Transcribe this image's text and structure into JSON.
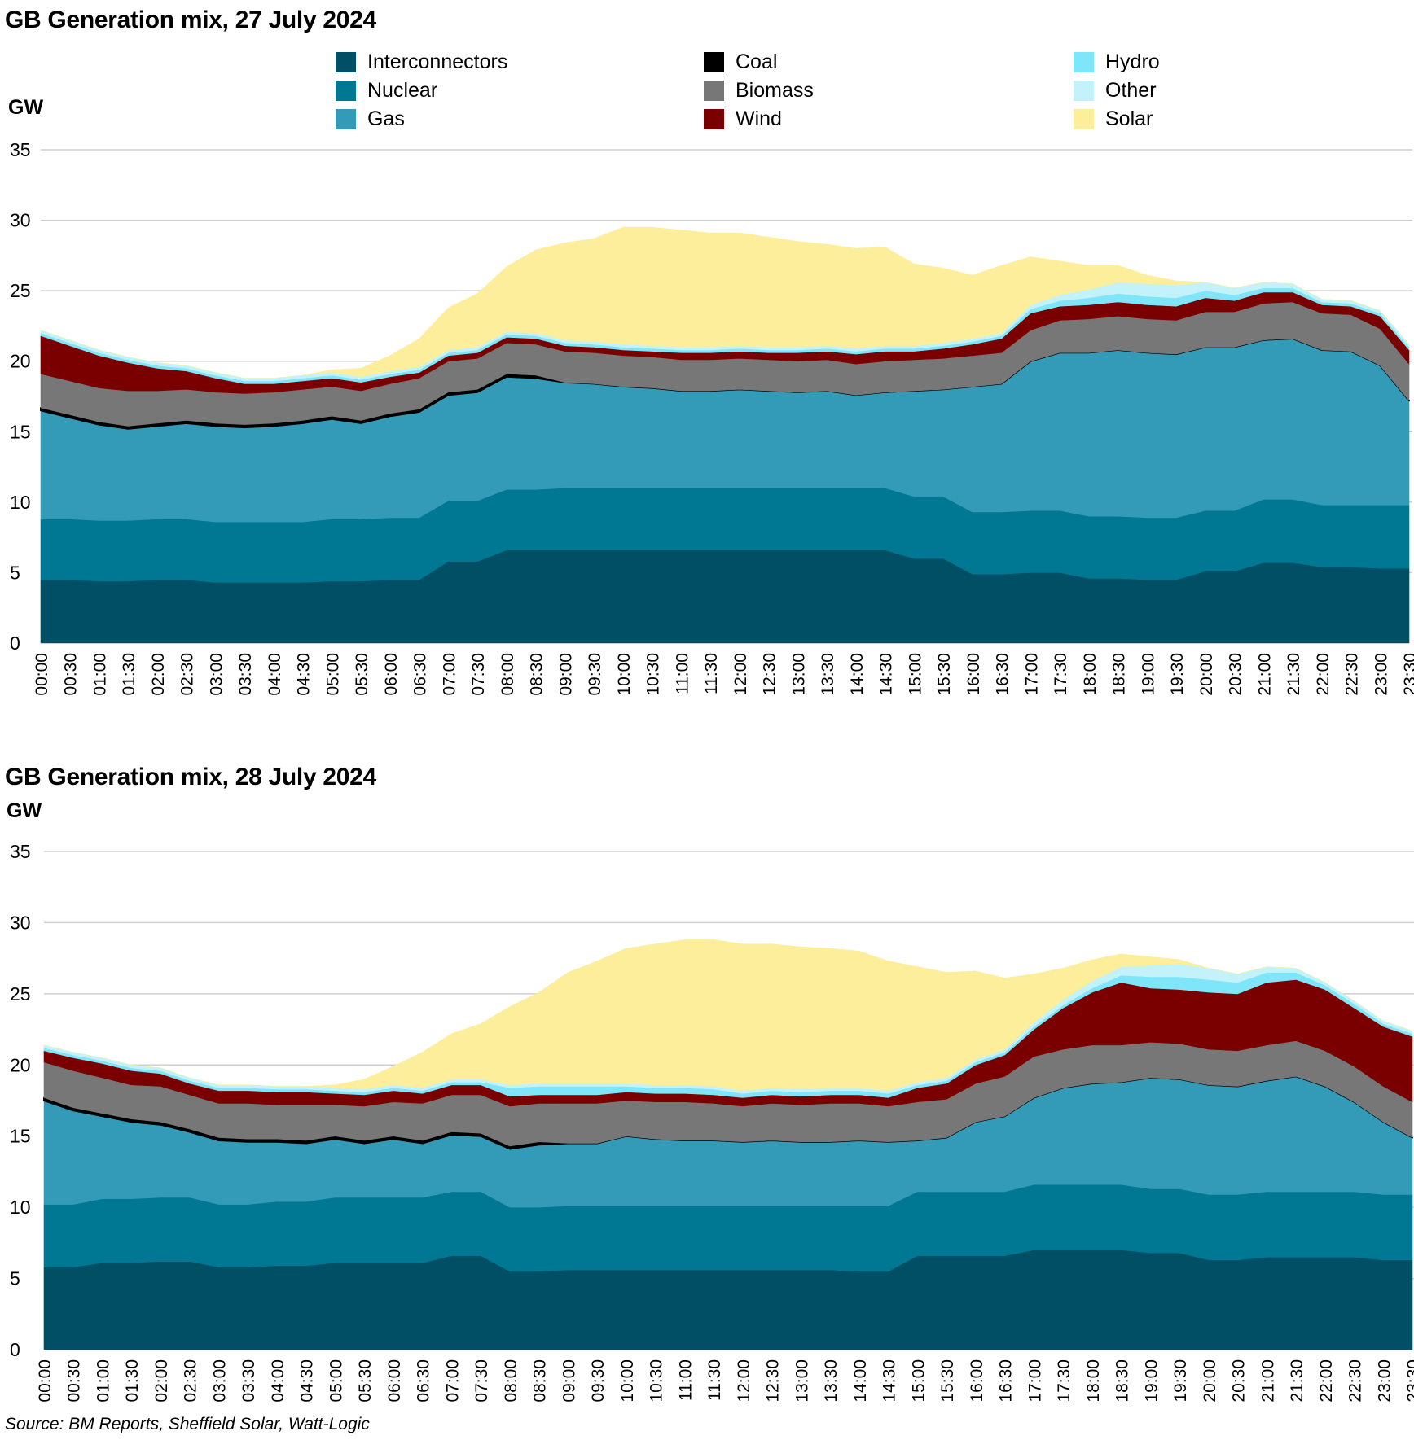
{
  "source": "Source: BM Reports, Sheffield Solar, Watt-Logic",
  "legend": [
    {
      "label": "Interconnectors",
      "color": "#004f64"
    },
    {
      "label": "Nuclear",
      "color": "#007793"
    },
    {
      "label": "Gas",
      "color": "#339bb8"
    },
    {
      "label": "Coal",
      "color": "#000000"
    },
    {
      "label": "Biomass",
      "color": "#777777"
    },
    {
      "label": "Wind",
      "color": "#7a0000"
    },
    {
      "label": "Hydro",
      "color": "#7fe5f8"
    },
    {
      "label": "Other",
      "color": "#c4f2fb"
    },
    {
      "label": "Solar",
      "color": "#fcee9a"
    }
  ],
  "chart_data": [
    {
      "type": "area",
      "stacked": true,
      "title": "GB Generation mix, 27 July 2024",
      "ylabel": "GW",
      "ylim": [
        0,
        35
      ],
      "yticks": [
        0,
        5,
        10,
        15,
        20,
        25,
        30,
        35
      ],
      "grid": true,
      "legend_position": "top",
      "categories": [
        "00:00",
        "00:30",
        "01:00",
        "01:30",
        "02:00",
        "02:30",
        "03:00",
        "03:30",
        "04:00",
        "04:30",
        "05:00",
        "05:30",
        "06:00",
        "06:30",
        "07:00",
        "07:30",
        "08:00",
        "08:30",
        "09:00",
        "09:30",
        "10:00",
        "10:30",
        "11:00",
        "11:30",
        "12:00",
        "12:30",
        "13:00",
        "13:30",
        "14:00",
        "14:30",
        "15:00",
        "15:30",
        "16:00",
        "16:30",
        "17:00",
        "17:30",
        "18:00",
        "18:30",
        "19:00",
        "19:30",
        "20:00",
        "20:30",
        "21:00",
        "21:30",
        "22:00",
        "22:30",
        "23:00",
        "23:30"
      ],
      "series": [
        {
          "name": "Interconnectors",
          "values": [
            4.5,
            4.5,
            4.4,
            4.4,
            4.5,
            4.5,
            4.3,
            4.3,
            4.3,
            4.3,
            4.4,
            4.4,
            4.5,
            4.5,
            5.8,
            5.8,
            6.6,
            6.6,
            6.6,
            6.6,
            6.6,
            6.6,
            6.6,
            6.6,
            6.6,
            6.6,
            6.6,
            6.6,
            6.6,
            6.6,
            6.0,
            6.0,
            4.9,
            4.9,
            5.0,
            5.0,
            4.6,
            4.6,
            4.5,
            4.5,
            5.1,
            5.1,
            5.7,
            5.7,
            5.4,
            5.4,
            5.3,
            5.3
          ]
        },
        {
          "name": "Nuclear",
          "values": [
            4.3,
            4.3,
            4.3,
            4.3,
            4.3,
            4.3,
            4.3,
            4.3,
            4.3,
            4.3,
            4.4,
            4.4,
            4.4,
            4.4,
            4.3,
            4.3,
            4.3,
            4.3,
            4.4,
            4.4,
            4.4,
            4.4,
            4.4,
            4.4,
            4.4,
            4.4,
            4.4,
            4.4,
            4.4,
            4.4,
            4.4,
            4.4,
            4.4,
            4.4,
            4.4,
            4.4,
            4.4,
            4.4,
            4.4,
            4.4,
            4.3,
            4.3,
            4.5,
            4.5,
            4.4,
            4.4,
            4.5,
            4.5
          ]
        },
        {
          "name": "Gas",
          "values": [
            7.7,
            7.2,
            6.8,
            6.5,
            6.6,
            6.8,
            6.8,
            6.7,
            6.8,
            7.0,
            7.1,
            6.8,
            7.2,
            7.5,
            7.5,
            7.7,
            8.0,
            7.9,
            7.5,
            7.4,
            7.2,
            7.1,
            6.9,
            6.9,
            7.0,
            6.9,
            6.8,
            6.9,
            6.6,
            6.8,
            7.5,
            7.6,
            8.9,
            9.1,
            10.6,
            11.2,
            11.6,
            11.8,
            11.7,
            11.6,
            11.6,
            11.6,
            11.3,
            11.4,
            11.0,
            10.9,
            9.9,
            7.4
          ]
        },
        {
          "name": "Coal",
          "values": [
            0.2,
            0.2,
            0.2,
            0.2,
            0.2,
            0.2,
            0.2,
            0.2,
            0.2,
            0.2,
            0.2,
            0.2,
            0.2,
            0.2,
            0.2,
            0.2,
            0.2,
            0.2,
            0.0,
            0.0,
            0.0,
            0.0,
            0.0,
            0.0,
            0.0,
            0.0,
            0.0,
            0.0,
            0.0,
            0.0,
            0.0,
            0.0,
            0.0,
            0.0,
            0.0,
            0.0,
            0.0,
            0.0,
            0.0,
            0.0,
            0.0,
            0.0,
            0.0,
            0.0,
            0.0,
            0.0,
            0.0,
            0.0
          ]
        },
        {
          "name": "Biomass",
          "values": [
            2.4,
            2.4,
            2.4,
            2.5,
            2.3,
            2.2,
            2.2,
            2.2,
            2.2,
            2.2,
            2.1,
            2.1,
            2.1,
            2.2,
            2.2,
            2.2,
            2.2,
            2.2,
            2.2,
            2.2,
            2.2,
            2.2,
            2.2,
            2.2,
            2.2,
            2.2,
            2.2,
            2.2,
            2.2,
            2.2,
            2.2,
            2.2,
            2.2,
            2.2,
            2.2,
            2.3,
            2.4,
            2.4,
            2.4,
            2.4,
            2.5,
            2.5,
            2.6,
            2.6,
            2.6,
            2.6,
            2.6,
            2.6
          ]
        },
        {
          "name": "Wind",
          "values": [
            2.7,
            2.5,
            2.3,
            2.0,
            1.6,
            1.3,
            1.0,
            0.7,
            0.6,
            0.6,
            0.6,
            0.6,
            0.5,
            0.4,
            0.4,
            0.4,
            0.4,
            0.4,
            0.4,
            0.4,
            0.4,
            0.4,
            0.5,
            0.5,
            0.5,
            0.5,
            0.6,
            0.6,
            0.7,
            0.7,
            0.6,
            0.7,
            0.8,
            1.0,
            1.2,
            1.0,
            1.0,
            1.0,
            1.0,
            1.0,
            1.0,
            0.8,
            0.8,
            0.7,
            0.6,
            0.6,
            0.9,
            1.0
          ]
        },
        {
          "name": "Hydro",
          "values": [
            0.2,
            0.2,
            0.2,
            0.2,
            0.2,
            0.2,
            0.2,
            0.2,
            0.2,
            0.2,
            0.2,
            0.2,
            0.2,
            0.2,
            0.2,
            0.2,
            0.2,
            0.2,
            0.2,
            0.2,
            0.2,
            0.2,
            0.2,
            0.2,
            0.2,
            0.2,
            0.2,
            0.2,
            0.2,
            0.2,
            0.2,
            0.2,
            0.2,
            0.2,
            0.3,
            0.4,
            0.5,
            0.6,
            0.6,
            0.6,
            0.5,
            0.4,
            0.3,
            0.3,
            0.2,
            0.2,
            0.2,
            0.2
          ]
        },
        {
          "name": "Other",
          "values": [
            0.2,
            0.2,
            0.2,
            0.2,
            0.2,
            0.2,
            0.2,
            0.2,
            0.2,
            0.2,
            0.2,
            0.2,
            0.2,
            0.2,
            0.2,
            0.2,
            0.2,
            0.2,
            0.2,
            0.2,
            0.2,
            0.2,
            0.2,
            0.2,
            0.2,
            0.2,
            0.2,
            0.2,
            0.2,
            0.2,
            0.2,
            0.2,
            0.2,
            0.2,
            0.3,
            0.4,
            0.6,
            0.8,
            0.9,
            0.9,
            0.6,
            0.5,
            0.4,
            0.3,
            0.2,
            0.2,
            0.2,
            0.2
          ]
        },
        {
          "name": "Solar",
          "values": [
            0.0,
            0.0,
            0.0,
            0.0,
            0.0,
            0.0,
            0.0,
            0.0,
            0.0,
            0.0,
            0.2,
            0.6,
            1.1,
            2.0,
            3.0,
            3.8,
            4.6,
            5.9,
            6.9,
            7.3,
            8.3,
            8.4,
            8.3,
            8.1,
            8.0,
            7.8,
            7.5,
            7.2,
            7.1,
            7.0,
            5.8,
            5.3,
            4.5,
            4.8,
            3.4,
            2.4,
            1.7,
            1.2,
            0.6,
            0.3,
            0.0,
            0.0,
            0.0,
            0.0,
            0.0,
            0.0,
            0.0,
            0.0
          ]
        }
      ]
    },
    {
      "type": "area",
      "stacked": true,
      "title": "GB Generation mix, 28 July 2024",
      "ylabel": "GW",
      "ylim": [
        0,
        35
      ],
      "yticks": [
        0,
        5,
        10,
        15,
        20,
        25,
        30,
        35
      ],
      "grid": true,
      "categories": [
        "00:00",
        "00:30",
        "01:00",
        "01:30",
        "02:00",
        "02:30",
        "03:00",
        "03:30",
        "04:00",
        "04:30",
        "05:00",
        "05:30",
        "06:00",
        "06:30",
        "07:00",
        "07:30",
        "08:00",
        "08:30",
        "09:00",
        "09:30",
        "10:00",
        "10:30",
        "11:00",
        "11:30",
        "12:00",
        "12:30",
        "13:00",
        "13:30",
        "14:00",
        "14:30",
        "15:00",
        "15:30",
        "16:00",
        "16:30",
        "17:00",
        "17:30",
        "18:00",
        "18:30",
        "19:00",
        "19:30",
        "20:00",
        "20:30",
        "21:00",
        "21:30",
        "22:00",
        "22:30",
        "23:00",
        "23:30"
      ],
      "series": [
        {
          "name": "Interconnectors",
          "values": [
            5.8,
            5.8,
            6.1,
            6.1,
            6.2,
            6.2,
            5.8,
            5.8,
            5.9,
            5.9,
            6.1,
            6.1,
            6.1,
            6.1,
            6.6,
            6.6,
            5.5,
            5.5,
            5.6,
            5.6,
            5.6,
            5.6,
            5.6,
            5.6,
            5.6,
            5.6,
            5.6,
            5.6,
            5.5,
            5.5,
            6.6,
            6.6,
            6.6,
            6.6,
            7.0,
            7.0,
            7.0,
            7.0,
            6.8,
            6.8,
            6.3,
            6.3,
            6.5,
            6.5,
            6.5,
            6.5,
            6.3,
            6.3
          ]
        },
        {
          "name": "Nuclear",
          "values": [
            4.4,
            4.4,
            4.5,
            4.5,
            4.5,
            4.5,
            4.4,
            4.4,
            4.5,
            4.5,
            4.6,
            4.6,
            4.6,
            4.6,
            4.5,
            4.5,
            4.5,
            4.5,
            4.5,
            4.5,
            4.5,
            4.5,
            4.5,
            4.5,
            4.5,
            4.5,
            4.5,
            4.5,
            4.6,
            4.6,
            4.5,
            4.5,
            4.5,
            4.5,
            4.6,
            4.6,
            4.6,
            4.6,
            4.5,
            4.5,
            4.6,
            4.6,
            4.6,
            4.6,
            4.6,
            4.6,
            4.6,
            4.6
          ]
        },
        {
          "name": "Gas",
          "values": [
            7.3,
            6.6,
            5.8,
            5.4,
            5.1,
            4.6,
            4.5,
            4.4,
            4.2,
            4.1,
            4.1,
            3.8,
            4.1,
            3.8,
            4.0,
            3.9,
            4.1,
            4.4,
            4.4,
            4.4,
            4.9,
            4.7,
            4.6,
            4.6,
            4.5,
            4.6,
            4.5,
            4.5,
            4.6,
            4.5,
            3.6,
            3.8,
            4.9,
            5.3,
            6.1,
            6.8,
            7.1,
            7.2,
            7.8,
            7.7,
            7.7,
            7.6,
            7.8,
            8.1,
            7.4,
            6.3,
            5.1,
            4.0
          ]
        },
        {
          "name": "Coal",
          "values": [
            0.2,
            0.2,
            0.2,
            0.2,
            0.2,
            0.2,
            0.2,
            0.2,
            0.2,
            0.2,
            0.2,
            0.2,
            0.2,
            0.2,
            0.2,
            0.2,
            0.2,
            0.2,
            0.0,
            0.0,
            0.0,
            0.0,
            0.0,
            0.0,
            0.0,
            0.0,
            0.0,
            0.0,
            0.0,
            0.0,
            0.0,
            0.0,
            0.0,
            0.0,
            0.0,
            0.0,
            0.0,
            0.0,
            0.0,
            0.0,
            0.0,
            0.0,
            0.0,
            0.0,
            0.0,
            0.0,
            0.0,
            0.0
          ]
        },
        {
          "name": "Biomass",
          "values": [
            2.5,
            2.6,
            2.5,
            2.4,
            2.5,
            2.4,
            2.4,
            2.5,
            2.4,
            2.5,
            2.2,
            2.4,
            2.4,
            2.6,
            2.6,
            2.7,
            2.8,
            2.7,
            2.8,
            2.8,
            2.5,
            2.6,
            2.7,
            2.6,
            2.5,
            2.6,
            2.6,
            2.7,
            2.6,
            2.5,
            2.7,
            2.7,
            2.7,
            2.8,
            2.9,
            2.7,
            2.7,
            2.6,
            2.5,
            2.5,
            2.5,
            2.5,
            2.5,
            2.5,
            2.5,
            2.5,
            2.5,
            2.5
          ]
        },
        {
          "name": "Wind",
          "values": [
            0.8,
            0.9,
            1.0,
            1.0,
            0.9,
            0.8,
            0.9,
            0.9,
            0.9,
            0.9,
            0.8,
            0.8,
            0.8,
            0.7,
            0.7,
            0.7,
            0.7,
            0.6,
            0.6,
            0.6,
            0.6,
            0.6,
            0.6,
            0.6,
            0.6,
            0.6,
            0.6,
            0.6,
            0.6,
            0.6,
            1.0,
            1.1,
            1.3,
            1.5,
            1.9,
            2.9,
            3.7,
            4.4,
            3.8,
            3.8,
            4.0,
            4.0,
            4.4,
            4.3,
            4.3,
            4.1,
            4.2,
            4.6
          ]
        },
        {
          "name": "Hydro",
          "values": [
            0.2,
            0.2,
            0.2,
            0.2,
            0.2,
            0.2,
            0.2,
            0.2,
            0.2,
            0.2,
            0.2,
            0.2,
            0.2,
            0.2,
            0.2,
            0.2,
            0.6,
            0.6,
            0.6,
            0.6,
            0.4,
            0.4,
            0.4,
            0.4,
            0.3,
            0.3,
            0.3,
            0.3,
            0.3,
            0.3,
            0.2,
            0.2,
            0.2,
            0.2,
            0.2,
            0.2,
            0.3,
            0.5,
            0.8,
            0.9,
            0.9,
            0.8,
            0.7,
            0.5,
            0.3,
            0.3,
            0.2,
            0.2
          ]
        },
        {
          "name": "Other",
          "values": [
            0.2,
            0.2,
            0.2,
            0.2,
            0.2,
            0.2,
            0.2,
            0.2,
            0.2,
            0.2,
            0.2,
            0.2,
            0.2,
            0.2,
            0.2,
            0.2,
            0.2,
            0.2,
            0.2,
            0.2,
            0.2,
            0.2,
            0.2,
            0.2,
            0.2,
            0.2,
            0.2,
            0.2,
            0.2,
            0.2,
            0.2,
            0.2,
            0.2,
            0.2,
            0.3,
            0.4,
            0.5,
            0.6,
            0.8,
            0.9,
            0.8,
            0.6,
            0.4,
            0.3,
            0.2,
            0.2,
            0.2,
            0.2
          ]
        },
        {
          "name": "Solar",
          "values": [
            0.0,
            0.0,
            0.0,
            0.0,
            0.0,
            0.0,
            0.0,
            0.0,
            0.0,
            0.0,
            0.2,
            0.7,
            1.3,
            2.5,
            3.2,
            3.9,
            5.5,
            6.4,
            7.8,
            8.6,
            9.5,
            9.9,
            10.2,
            10.3,
            10.3,
            10.1,
            10.0,
            9.8,
            9.6,
            9.1,
            8.1,
            7.4,
            6.2,
            5.0,
            3.4,
            2.2,
            1.5,
            0.9,
            0.6,
            0.3,
            0.0,
            0.0,
            0.0,
            0.0,
            0.0,
            0.0,
            0.0,
            0.0
          ]
        }
      ]
    }
  ]
}
